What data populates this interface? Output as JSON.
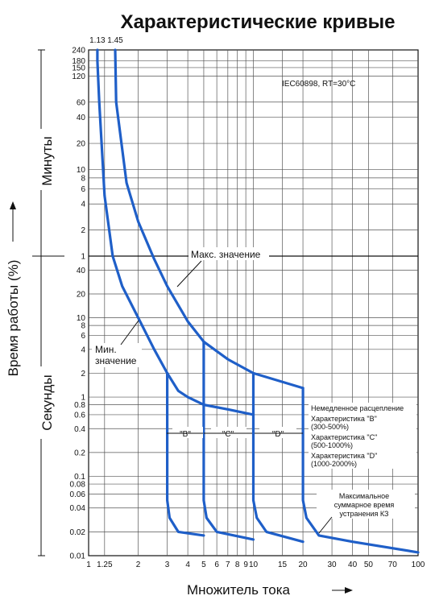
{
  "title": "Характеристические кривые",
  "standard_note": "IEC60898,  RT=30°C",
  "xlabel": "Множитель тока",
  "ylabel": "Время работы (%)",
  "y_sections": {
    "minutes": "Минуты",
    "seconds": "Секунды"
  },
  "top_ticks": [
    "1.13",
    "1.45"
  ],
  "x_ticks": [
    "1",
    "1.25",
    "2",
    "3",
    "4",
    "5",
    "6",
    "7",
    "8",
    "9",
    "10",
    "15",
    "20",
    "30",
    "40",
    "50",
    "70",
    "100"
  ],
  "y_ticks_minutes": [
    "240",
    "180",
    "150",
    "120",
    "60",
    "40",
    "20",
    "10",
    "8",
    "6",
    "4",
    "2",
    "1"
  ],
  "y_ticks_seconds": [
    "40",
    "20",
    "10",
    "8",
    "6",
    "4",
    "2",
    "1",
    "0.8",
    "0.6",
    "0.4",
    "0.2",
    "0.1",
    "0.08",
    "0.06",
    "0.04",
    "0.02",
    "0.01"
  ],
  "annotations": {
    "max": "Макс. значение",
    "min_line1": "Мин.",
    "min_line2": "значение",
    "band_b": "\"B\"",
    "band_c": "\"C\"",
    "band_d": "\"D\"",
    "instant_title": "Немедленное расцепление",
    "char_b": "Характеристика \"B\"",
    "char_b_range": "(300-500%)",
    "char_c": "Характеристика \"C\"",
    "char_c_range": "(500-1000%)",
    "char_d": "Характеристика \"D\"",
    "char_d_range": "(1000-2000%)",
    "max_clear_1": "Максимальное",
    "max_clear_2": "суммарное время",
    "max_clear_3": "устранения  КЗ"
  },
  "chart_data": {
    "type": "line",
    "title": "Характеристические кривые",
    "xlabel": "Множитель тока",
    "ylabel": "Время работы (%)",
    "x_scale": "log",
    "xlim": [
      1,
      100
    ],
    "y_scale": "log (minutes above 1 min, seconds below)",
    "grid": true,
    "series": [
      {
        "name": "Мин. значение",
        "points": [
          [
            1.13,
            14400
          ],
          [
            1.13,
            10800
          ],
          [
            1.16,
            3600
          ],
          [
            1.25,
            300
          ],
          [
            1.4,
            60
          ],
          [
            1.6,
            25
          ],
          [
            2,
            10
          ],
          [
            2.5,
            4
          ],
          [
            3,
            2
          ]
        ]
      },
      {
        "name": "Макс. значение",
        "points": [
          [
            1.45,
            14400
          ],
          [
            1.47,
            3600
          ],
          [
            1.7,
            420
          ],
          [
            2,
            150
          ],
          [
            2.5,
            55
          ],
          [
            3,
            25
          ],
          [
            4,
            9
          ],
          [
            5,
            5
          ],
          [
            7,
            3
          ],
          [
            10,
            2
          ],
          [
            20,
            1.3
          ]
        ]
      },
      {
        "name": "Мин. значение (3–10)",
        "points": [
          [
            3,
            2
          ],
          [
            3.5,
            1.2
          ],
          [
            4,
            1
          ],
          [
            5,
            0.8
          ],
          [
            7,
            0.7
          ],
          [
            10,
            0.6
          ]
        ]
      },
      {
        "name": "\"B\"",
        "points": [
          [
            3,
            2
          ],
          [
            3,
            0.05
          ],
          [
            3.1,
            0.03
          ],
          [
            3.5,
            0.02
          ],
          [
            5,
            0.018
          ]
        ]
      },
      {
        "name": "\"C\"",
        "points": [
          [
            5,
            5
          ],
          [
            5,
            0.05
          ],
          [
            5.2,
            0.03
          ],
          [
            6,
            0.02
          ],
          [
            10,
            0.016
          ]
        ]
      },
      {
        "name": "\"D\"",
        "points": [
          [
            10,
            2
          ],
          [
            10,
            0.05
          ],
          [
            10.5,
            0.03
          ],
          [
            12,
            0.02
          ],
          [
            20,
            0.015
          ]
        ]
      },
      {
        "name": "Максимальное суммарное время устранения  КЗ",
        "points": [
          [
            20,
            1.3
          ],
          [
            20,
            0.05
          ],
          [
            21,
            0.03
          ],
          [
            25,
            0.018
          ],
          [
            40,
            0.015
          ],
          [
            100,
            0.011
          ]
        ]
      }
    ]
  }
}
